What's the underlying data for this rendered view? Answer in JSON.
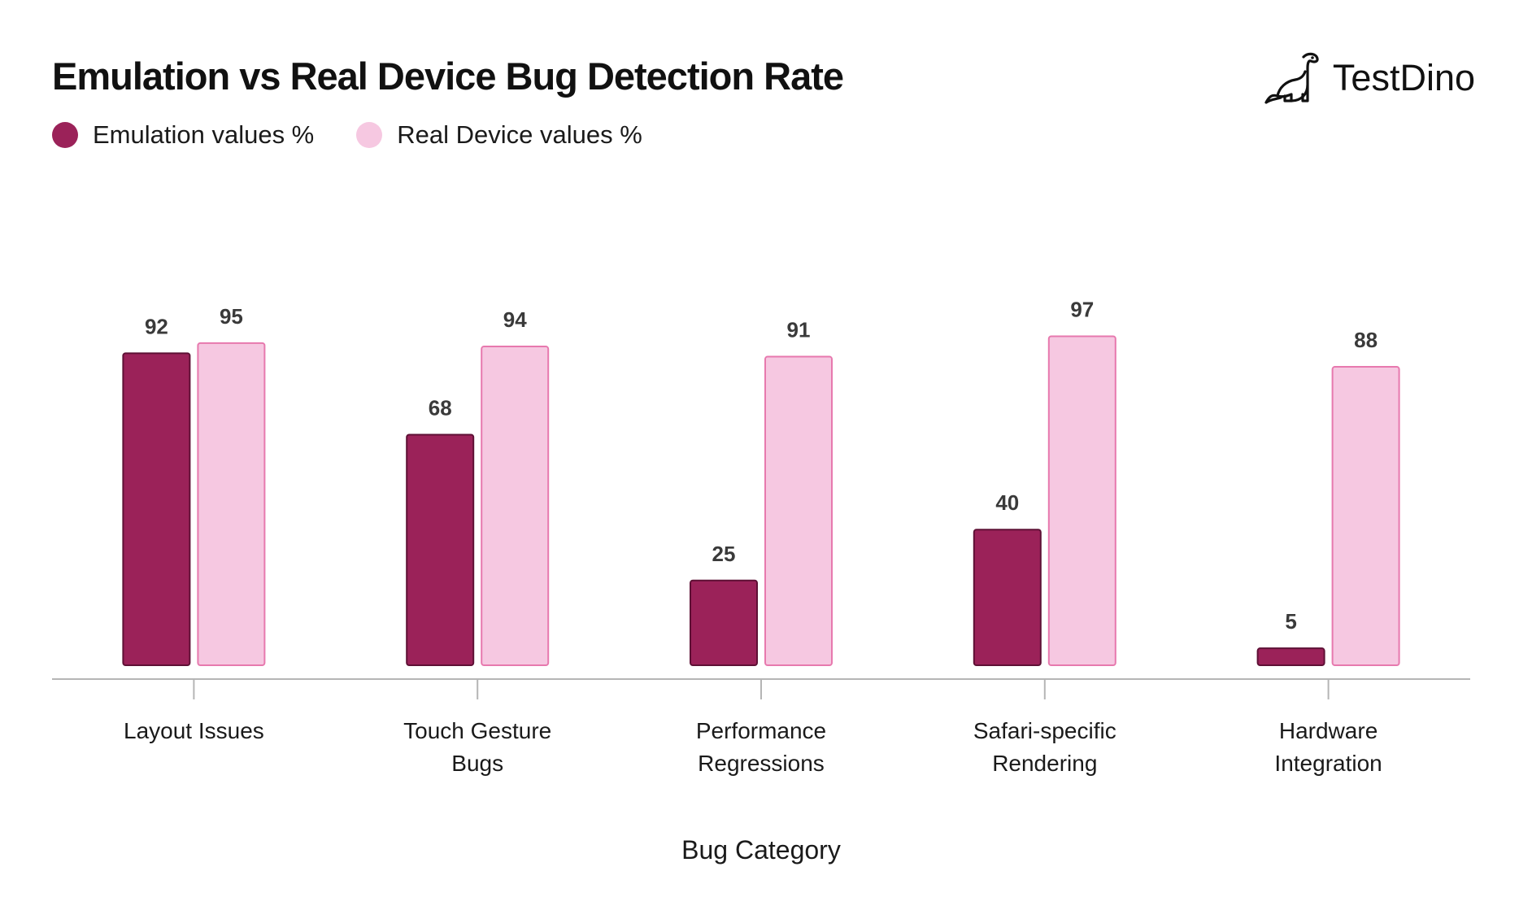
{
  "brand": {
    "name": "TestDino",
    "logo_icon": "dinosaur-icon"
  },
  "colors": {
    "emulation_fill": "#9b2259",
    "emulation_stroke": "#5e1035",
    "real_fill": "#f6c8e1",
    "real_stroke": "#e779ae",
    "axis": "#b5b5b5"
  },
  "chart_data": {
    "type": "bar",
    "title": "Emulation vs Real Device Bug Detection Rate",
    "xlabel": "Bug Category",
    "ylabel": "",
    "ylim": [
      0,
      100
    ],
    "legend_position": "top-left",
    "grid": false,
    "categories": [
      [
        "Layout Issues"
      ],
      [
        "Touch Gesture",
        "Bugs"
      ],
      [
        "Performance",
        "Regressions"
      ],
      [
        "Safari-specific",
        "Rendering"
      ],
      [
        "Hardware",
        "Integration"
      ]
    ],
    "series": [
      {
        "name": "Emulation values %",
        "values": [
          92,
          68,
          25,
          40,
          5
        ]
      },
      {
        "name": "Real Device values %",
        "values": [
          95,
          94,
          91,
          97,
          88
        ]
      }
    ]
  }
}
